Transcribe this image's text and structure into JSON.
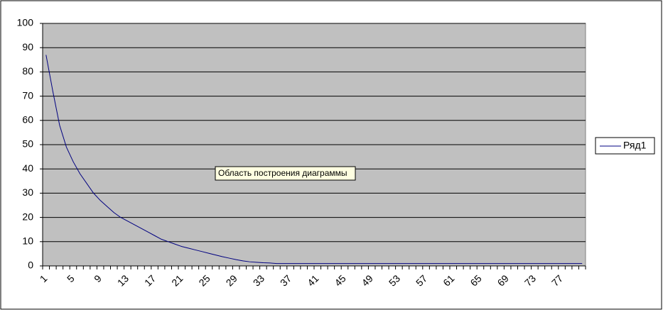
{
  "chart_data": {
    "type": "line",
    "tooltip": "Область построения диаграммы",
    "categories": [
      "1",
      null,
      null,
      null,
      "5",
      null,
      null,
      null,
      "9",
      null,
      null,
      null,
      "13",
      null,
      null,
      null,
      "17",
      null,
      null,
      null,
      "21",
      null,
      null,
      null,
      "25",
      null,
      null,
      null,
      "29",
      null,
      null,
      null,
      "33",
      null,
      null,
      null,
      "37",
      null,
      null,
      null,
      "41",
      null,
      null,
      null,
      "45",
      null,
      null,
      null,
      "49",
      null,
      null,
      null,
      "53",
      null,
      null,
      null,
      "57",
      null,
      null,
      null,
      "61",
      null,
      null,
      null,
      "65",
      null,
      null,
      null,
      "69",
      null,
      null,
      null,
      "73",
      null,
      null,
      null,
      "77",
      null,
      null,
      null
    ],
    "series": [
      {
        "name": "Ряд1",
        "color": "#000080",
        "values": [
          87,
          72,
          58,
          49,
          43,
          38,
          34,
          30,
          27,
          24.5,
          22,
          20,
          18.5,
          17,
          15.5,
          14,
          12.5,
          11,
          10,
          9,
          8,
          7.3,
          6.6,
          5.9,
          5.2,
          4.5,
          3.8,
          3.2,
          2.6,
          2.1,
          1.7,
          1.5,
          1.3,
          1.2,
          1,
          1,
          1,
          1,
          1,
          1,
          1,
          1,
          1,
          1,
          1,
          1,
          1,
          1,
          1,
          1,
          1,
          1,
          1,
          1,
          1,
          1,
          1,
          1,
          1,
          1,
          1,
          1,
          1,
          1,
          1,
          1,
          1,
          1,
          1,
          1,
          1,
          1,
          1,
          1,
          1,
          1,
          1,
          1,
          1,
          1
        ]
      }
    ],
    "ylim": [
      0,
      100
    ],
    "yticks": [
      0,
      10,
      20,
      30,
      40,
      50,
      60,
      70,
      80,
      90,
      100
    ],
    "grid": true,
    "plot_background": "#c0c0c0",
    "legend": "right"
  }
}
